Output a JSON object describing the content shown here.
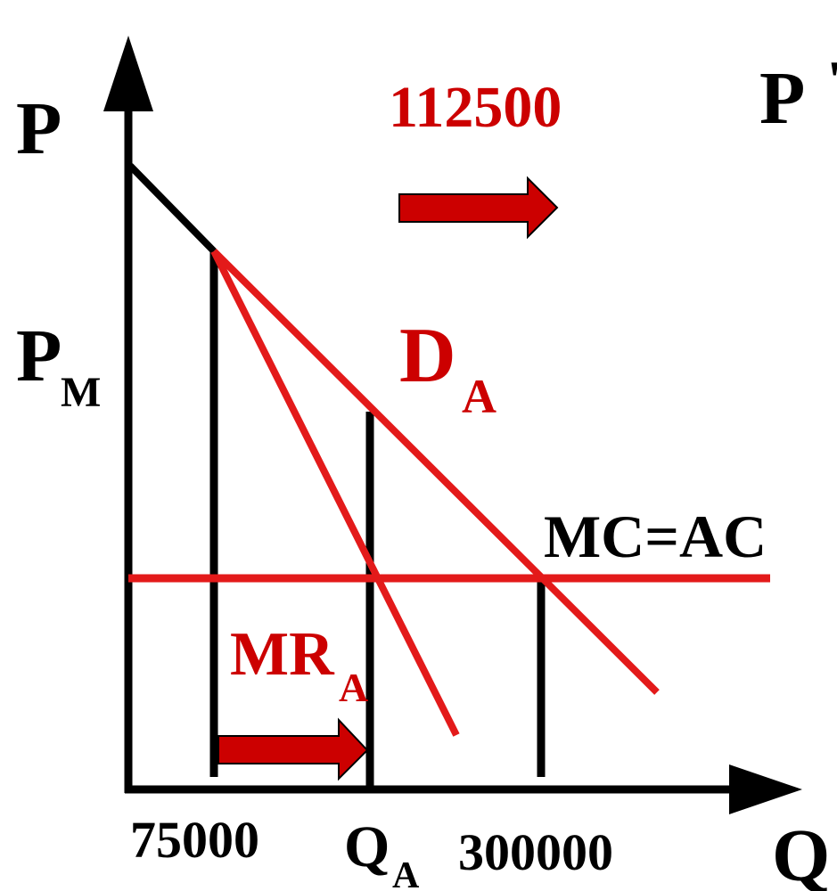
{
  "labels": {
    "y_axis": "P",
    "x_axis": "Q",
    "corner": "P",
    "pm_main": "P",
    "pm_sub": "M",
    "demand_main": "D",
    "demand_sub": "A",
    "mr_main": "MR",
    "mr_sub": "A",
    "mc_ac": "MC=AC",
    "top_quantity": "112500",
    "qa_main": "Q",
    "qa_sub": "A",
    "q_low": "75000",
    "q_high": "300000"
  },
  "colors": {
    "axis": "#000000",
    "curve_red": "#e31a1a",
    "label_red": "#cc0000",
    "arrow_fill": "#cc0000"
  }
}
